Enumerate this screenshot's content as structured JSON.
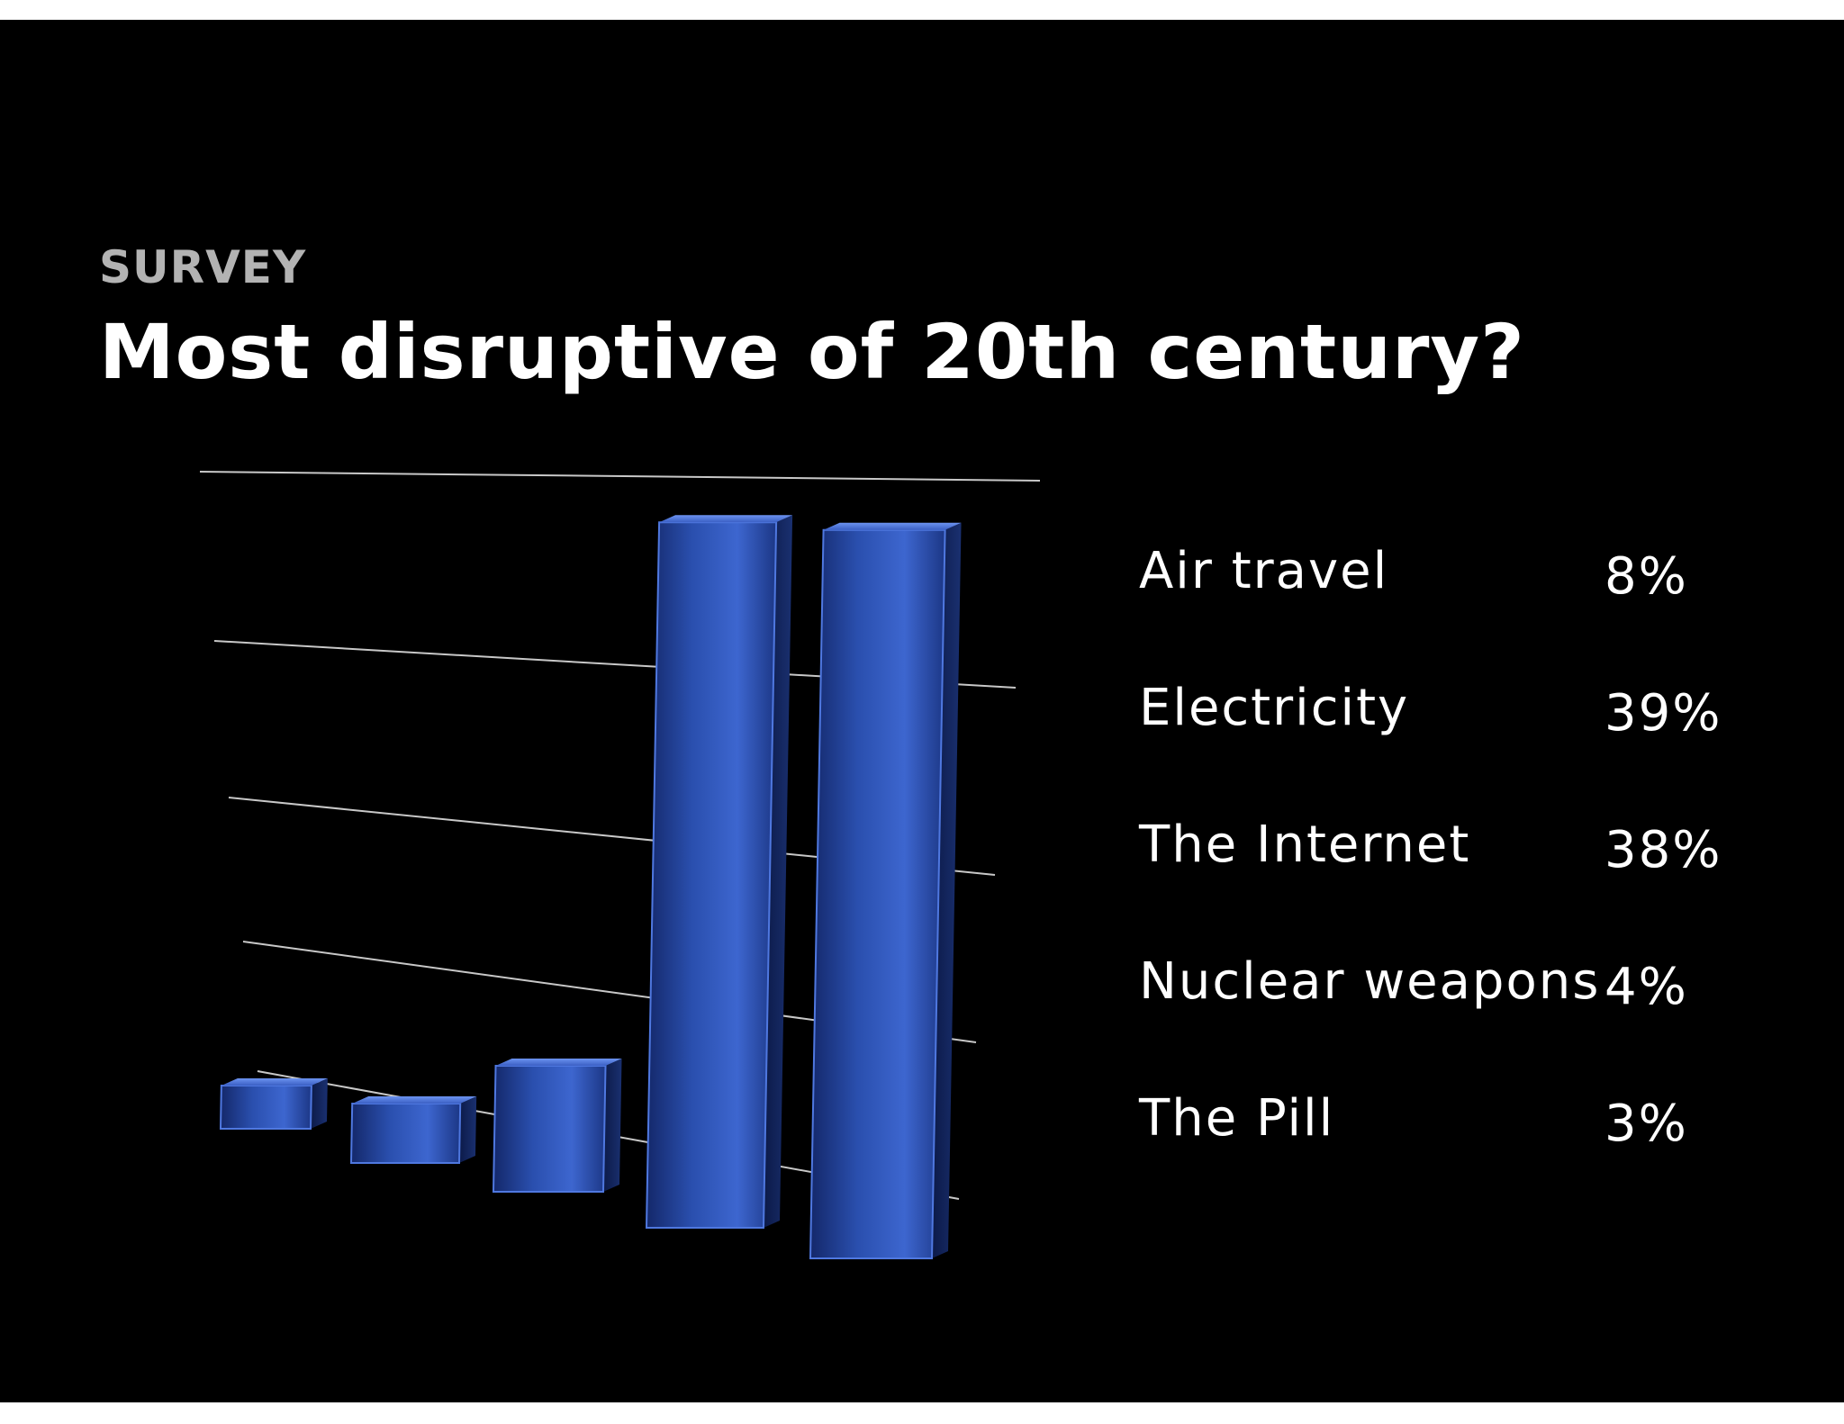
{
  "slide": {
    "kicker": "SURVEY",
    "title": "Most disruptive of 20th century?"
  },
  "chart_data": {
    "type": "bar",
    "style": "3d-perspective",
    "categories": [
      "Air travel",
      "Electricity",
      "The Internet",
      "Nuclear weapons",
      "The Pill"
    ],
    "values": [
      8,
      39,
      38,
      4,
      3
    ],
    "value_labels": [
      "8%",
      "39%",
      "38%",
      "4%",
      "3%"
    ],
    "bar_order_left_to_right": [
      "The Pill",
      "Nuclear weapons",
      "Air travel",
      "The Internet",
      "Electricity"
    ],
    "ylim": [
      0,
      40
    ],
    "grid": true,
    "legend": "right",
    "bar_color": "#2f56b8",
    "background_color": "#000000"
  }
}
